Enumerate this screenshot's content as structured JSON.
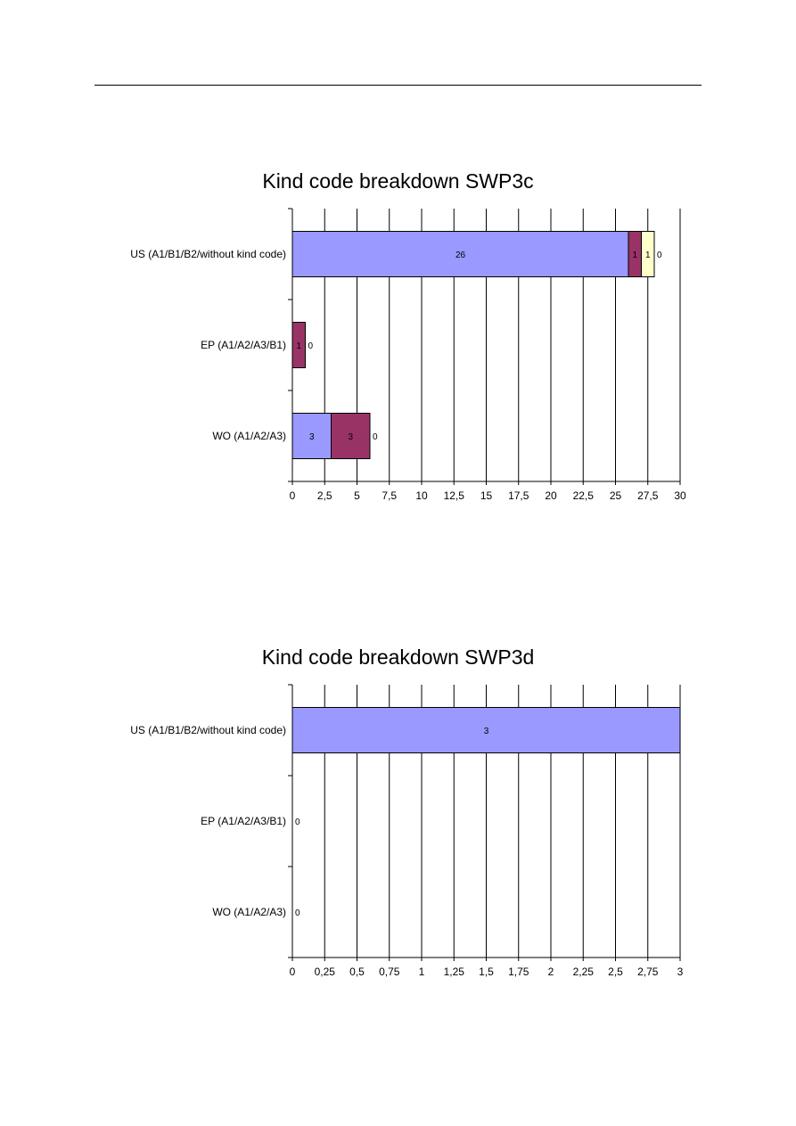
{
  "chart_data": [
    {
      "type": "bar",
      "orientation": "horizontal",
      "stacked": true,
      "title": "Kind code breakdown SWP3c",
      "categories": [
        "US (A1/B1/B2/without kind code)",
        "EP (A1/A2/A3/B1)",
        "WO (A1/A2/A3)"
      ],
      "series": [
        {
          "values": [
            26,
            0,
            3
          ],
          "color": "#9999ff",
          "labels": [
            "26",
            "0",
            "3"
          ]
        },
        {
          "values": [
            1,
            1,
            3
          ],
          "color": "#993366",
          "labels": [
            "1",
            "1",
            "3"
          ]
        },
        {
          "values": [
            1,
            0,
            0
          ],
          "color": "#ffffcc",
          "labels": [
            "1",
            "0",
            "0"
          ]
        },
        {
          "values": [
            0,
            0,
            0
          ],
          "color": "#ccffff",
          "labels": [
            "0",
            "",
            ""
          ]
        }
      ],
      "xlim": [
        0,
        30
      ],
      "xticks": [
        "0",
        "2,5",
        "5",
        "7,5",
        "10",
        "12,5",
        "15",
        "17,5",
        "20",
        "22,5",
        "25",
        "27,5",
        "30"
      ],
      "grid": "vertical"
    },
    {
      "type": "bar",
      "orientation": "horizontal",
      "stacked": true,
      "title": "Kind code breakdown SWP3d",
      "categories": [
        "US (A1/B1/B2/without kind code)",
        "EP (A1/A2/A3/B1)",
        "WO (A1/A2/A3)"
      ],
      "series": [
        {
          "values": [
            3,
            0,
            0
          ],
          "color": "#9999ff",
          "labels": [
            "3",
            "0",
            "0"
          ]
        }
      ],
      "xlim": [
        0,
        3
      ],
      "xticks": [
        "0",
        "0,25",
        "0,5",
        "0,75",
        "1",
        "1,25",
        "1,5",
        "1,75",
        "2",
        "2,25",
        "2,5",
        "2,75",
        "3"
      ],
      "grid": "vertical"
    }
  ]
}
